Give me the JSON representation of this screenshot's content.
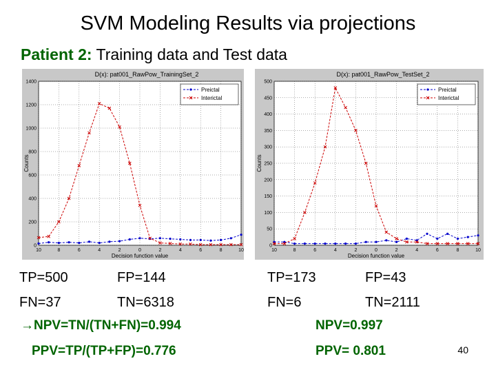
{
  "slide": {
    "title": "SVM Modeling Results via projections",
    "subtitle_patient": "Patient 2:",
    "subtitle_rest": " Training data and Test data",
    "page_number": "40"
  },
  "colors": {
    "green": "#006400",
    "preictal": "#0000cc",
    "interictal": "#cc0000",
    "figure_bg": "#c8c8c8"
  },
  "chart_data": [
    {
      "type": "line",
      "title": "D(x): pat001_RawPow_TrainingSet_2",
      "xlabel": "Decision function value",
      "ylabel": "Counts",
      "xlim": [
        -10,
        10
      ],
      "ylim": [
        0,
        1400
      ],
      "xticks": [
        10,
        8,
        6,
        4,
        2,
        0,
        2,
        4,
        6,
        8,
        10
      ],
      "yticks": [
        0,
        200,
        400,
        600,
        800,
        1000,
        1200,
        1400
      ],
      "legend": [
        "Preictal",
        "Interictal"
      ],
      "series": [
        {
          "name": "Preictal",
          "x": [
            -10,
            -9,
            -8,
            -7,
            -6,
            -5,
            -4,
            -3,
            -2,
            -1,
            0,
            1,
            2,
            3,
            4,
            5,
            6,
            7,
            8,
            9,
            10
          ],
          "y": [
            15,
            25,
            20,
            25,
            20,
            30,
            20,
            30,
            35,
            50,
            60,
            55,
            60,
            55,
            50,
            45,
            45,
            40,
            45,
            60,
            90
          ]
        },
        {
          "name": "Interictal",
          "x": [
            -10,
            -9,
            -8,
            -7,
            -6,
            -5,
            -4,
            -3,
            -2,
            -1,
            0,
            1,
            2,
            3,
            4,
            5,
            6,
            7,
            8,
            9,
            10
          ],
          "y": [
            65,
            75,
            200,
            400,
            680,
            960,
            1210,
            1170,
            1010,
            700,
            340,
            60,
            20,
            15,
            10,
            10,
            5,
            5,
            5,
            5,
            5
          ]
        }
      ]
    },
    {
      "type": "line",
      "title": "D(x): pat001_RawPow_TestSet_2",
      "xlabel": "Decision function value",
      "ylabel": "Counts",
      "xlim": [
        -10,
        10
      ],
      "ylim": [
        0,
        500
      ],
      "xticks": [
        10,
        8,
        6,
        4,
        2,
        0,
        2,
        4,
        6,
        8,
        10
      ],
      "yticks": [
        0,
        50,
        100,
        150,
        200,
        250,
        300,
        350,
        400,
        450,
        500
      ],
      "legend": [
        "Preictal",
        "Interictal"
      ],
      "series": [
        {
          "name": "Preictal",
          "x": [
            -10,
            -9,
            -8,
            -7,
            -6,
            -5,
            -4,
            -3,
            -2,
            -1,
            0,
            1,
            2,
            3,
            4,
            5,
            6,
            7,
            8,
            9,
            10
          ],
          "y": [
            10,
            10,
            5,
            5,
            5,
            5,
            5,
            5,
            5,
            10,
            10,
            15,
            10,
            20,
            15,
            35,
            20,
            35,
            20,
            25,
            30
          ]
        },
        {
          "name": "Interictal",
          "x": [
            -10,
            -9,
            -8,
            -7,
            -6,
            -5,
            -4,
            -3,
            -2,
            -1,
            0,
            1,
            2,
            3,
            4,
            5,
            6,
            7,
            8,
            9,
            10
          ],
          "y": [
            5,
            5,
            20,
            100,
            190,
            300,
            480,
            420,
            350,
            250,
            120,
            40,
            20,
            10,
            10,
            5,
            5,
            5,
            5,
            5,
            5
          ]
        }
      ]
    }
  ],
  "stats": {
    "train": {
      "tp": "TP=500",
      "fp": "FP=144",
      "fn": "FN=37",
      "tn": "TN=6318",
      "npv": "NPV=TN/(TN+FN)=0.994",
      "ppv": "PPV=TP/(TP+FP)=0.776"
    },
    "test": {
      "tp": "TP=173",
      "fp": "FP=43",
      "fn": "FN=6",
      "tn": "TN=2111",
      "npv": "NPV=0.997",
      "ppv": "PPV= 0.801"
    },
    "arrow": "→"
  }
}
